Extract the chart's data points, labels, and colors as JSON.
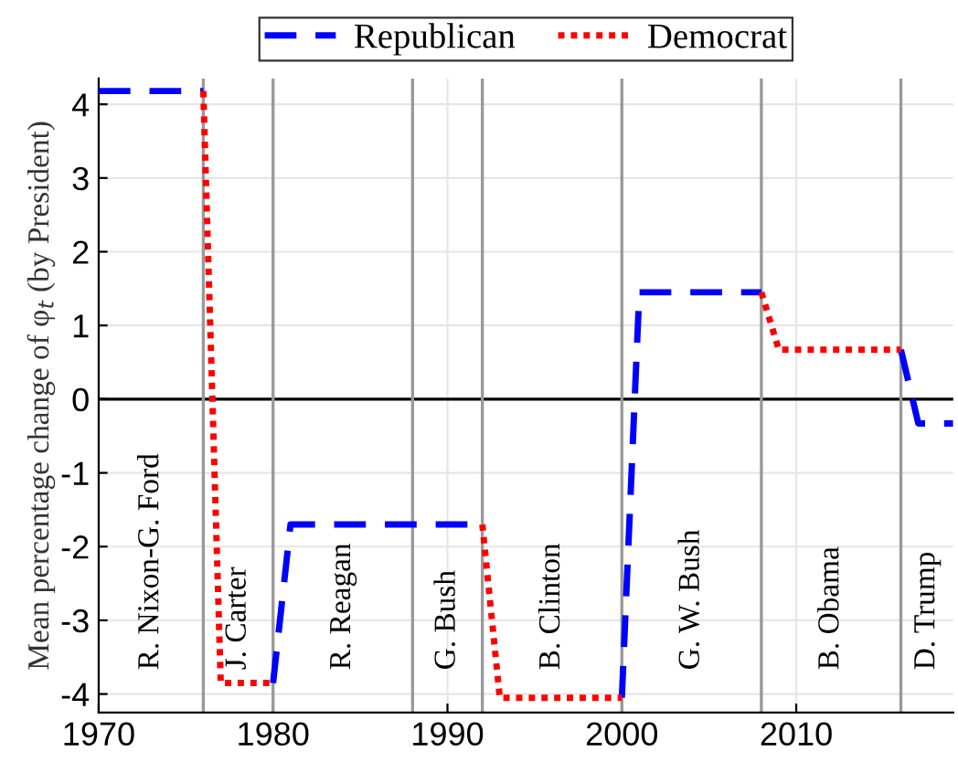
{
  "chart_data": {
    "type": "line",
    "ylabel": "Mean percentage change of φ$_{t}$ (by President)",
    "xlim": [
      1970,
      2019
    ],
    "xticks": [
      1970,
      1980,
      1990,
      2000,
      2010
    ],
    "ylim": [
      -4.25,
      4.35
    ],
    "yticks": [
      -4,
      -3,
      -2,
      -1,
      0,
      1,
      2,
      3,
      4
    ],
    "grid": true,
    "legend": "top",
    "marker": "none",
    "series": [
      {
        "name": "Republican",
        "color": "#0000ff",
        "line_style": "dashed",
        "x": [
          1970,
          1976,
          null,
          1980,
          1981,
          1992,
          null,
          2000,
          2001,
          2008,
          null,
          2016,
          2017,
          2019
        ],
        "values": [
          4.18,
          4.18,
          null,
          -3.85,
          -1.7,
          -1.7,
          null,
          -4.05,
          1.45,
          1.45,
          null,
          0.67,
          -0.33,
          -0.33
        ]
      },
      {
        "name": "Democrat",
        "color": "#ff0000",
        "line_style": "dotted",
        "x": [
          1976,
          1977,
          1980,
          null,
          1992,
          1993,
          2000,
          null,
          2008,
          2009,
          2016
        ],
        "values": [
          4.18,
          -3.85,
          -3.85,
          null,
          -1.7,
          -4.05,
          -4.05,
          null,
          1.45,
          0.67,
          0.67
        ]
      }
    ],
    "ref_lines": [
      {
        "axis": "y",
        "value": 0,
        "color": "#000000"
      },
      {
        "axis": "x",
        "value": 1976,
        "color": "#999999"
      },
      {
        "axis": "x",
        "value": 1980,
        "color": "#999999"
      },
      {
        "axis": "x",
        "value": 1988,
        "color": "#999999"
      },
      {
        "axis": "x",
        "value": 1992,
        "color": "#999999"
      },
      {
        "axis": "x",
        "value": 2000,
        "color": "#999999"
      },
      {
        "axis": "x",
        "value": 2008,
        "color": "#999999"
      },
      {
        "axis": "x",
        "value": 2016,
        "color": "#999999"
      }
    ],
    "annotations": [
      "R. Nixon-G. Ford",
      "J. Carter",
      "R. Reagan",
      "G. Bush",
      "B. Clinton",
      "G. W. Bush",
      "B. Obama",
      "D. Trump"
    ]
  }
}
